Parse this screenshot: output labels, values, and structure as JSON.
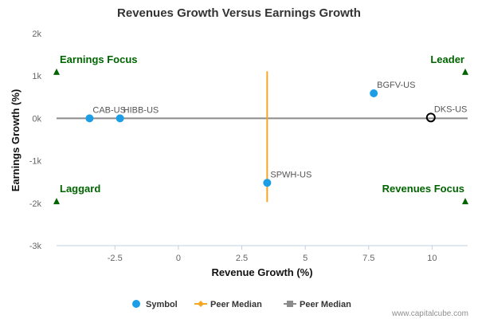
{
  "chart_data": {
    "type": "scatter",
    "title": "Revenues Growth Versus Earnings Growth",
    "xlabel": "Revenue Growth (%)",
    "ylabel": "Earnings Growth (%)",
    "xlim": [
      -4.8,
      11.4
    ],
    "ylim": [
      -3000,
      2000
    ],
    "x_ticks": [
      -2.5,
      0,
      2.5,
      5,
      7.5,
      10
    ],
    "x_tick_labels": [
      "-2.5",
      "0",
      "2.5",
      "5",
      "7.5",
      "10"
    ],
    "y_ticks": [
      2000,
      1000,
      0,
      -1000,
      -2000,
      -3000
    ],
    "y_tick_labels": [
      "2k",
      "1k",
      "0k",
      "-1k",
      "-2k",
      "-3k"
    ],
    "grid": false,
    "points": [
      {
        "label": "CAB-US",
        "x": -3.5,
        "y": 0,
        "style": "filled"
      },
      {
        "label": "HIBB-US",
        "x": -2.3,
        "y": 0,
        "style": "filled"
      },
      {
        "label": "BGFV-US",
        "x": 7.7,
        "y": 590,
        "style": "filled"
      },
      {
        "label": "SPWH-US",
        "x": 3.5,
        "y": -1520,
        "style": "filled"
      },
      {
        "label": "DKS-US",
        "x": 9.95,
        "y": 20,
        "style": "hollow"
      }
    ],
    "peer_median_x": {
      "x": 3.5,
      "y_from": -1970,
      "y_to": 1110
    },
    "peer_median_y": {
      "y": 0,
      "x_from": -4.8,
      "x_to": 11.4
    },
    "quadrant_labels": [
      {
        "text": "Earnings Focus",
        "corner": "top-left"
      },
      {
        "text": "Leader",
        "corner": "top-right"
      },
      {
        "text": "Laggard",
        "corner": "bottom-left"
      },
      {
        "text": "Revenues Focus",
        "corner": "bottom-right"
      }
    ],
    "quadrant_marker_y": {
      "top": 1100,
      "bottom": -1950
    },
    "legend": {
      "placement": "bottom-center",
      "items": [
        {
          "label": "Symbol",
          "kind": "circle",
          "color": "#1b9ee6"
        },
        {
          "label": "Peer Median",
          "kind": "diamond-line",
          "color": "#f5a623"
        },
        {
          "label": "Peer Median",
          "kind": "square-line",
          "color": "#8c8c8c"
        }
      ]
    },
    "colors": {
      "point": "#1b9ee6",
      "hollow_point": "#000000",
      "median_x": "#f5a623",
      "median_y": "#8c8c8c",
      "quadrant_text": "#006400",
      "marker": "#006400"
    },
    "credit": "www.capitalcube.com"
  }
}
